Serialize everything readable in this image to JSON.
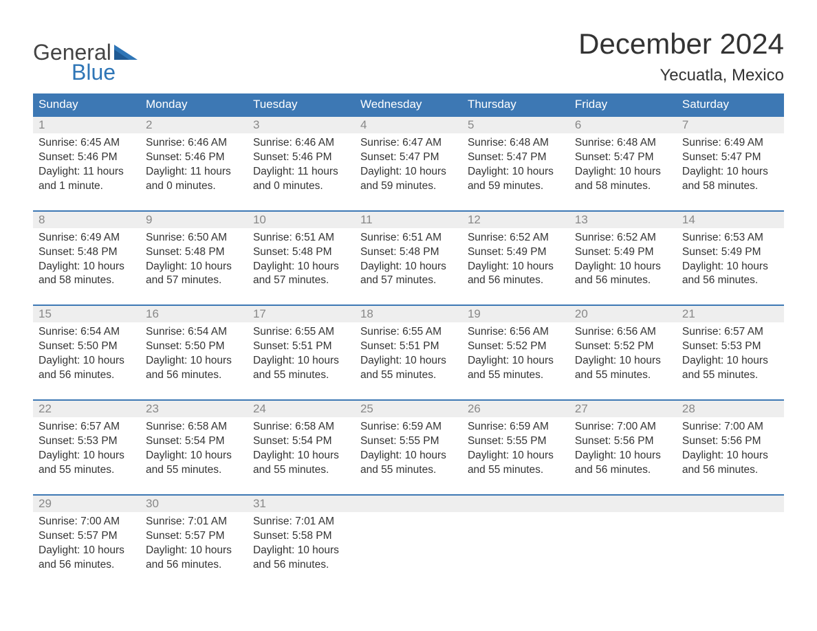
{
  "logo": {
    "text1": "General",
    "text2": "Blue",
    "flag_color": "#2e75b6"
  },
  "title": "December 2024",
  "location": "Yecuatla, Mexico",
  "colors": {
    "header_bg": "#3d78b4",
    "header_text": "#ffffff",
    "daynum_bg": "#eeeeee",
    "daynum_text": "#888888",
    "body_text": "#333333",
    "rule": "#3d78b4",
    "logo_gray": "#444444",
    "logo_blue": "#2e75b6",
    "page_bg": "#ffffff"
  },
  "fonts": {
    "title_size": 42,
    "location_size": 24,
    "header_size": 17,
    "daynum_size": 17,
    "body_size": 15.5,
    "logo_size": 32
  },
  "days_of_week": [
    "Sunday",
    "Monday",
    "Tuesday",
    "Wednesday",
    "Thursday",
    "Friday",
    "Saturday"
  ],
  "weeks": [
    [
      {
        "n": "1",
        "sunrise": "6:45 AM",
        "sunset": "5:46 PM",
        "dl": "11 hours and 1 minute."
      },
      {
        "n": "2",
        "sunrise": "6:46 AM",
        "sunset": "5:46 PM",
        "dl": "11 hours and 0 minutes."
      },
      {
        "n": "3",
        "sunrise": "6:46 AM",
        "sunset": "5:46 PM",
        "dl": "11 hours and 0 minutes."
      },
      {
        "n": "4",
        "sunrise": "6:47 AM",
        "sunset": "5:47 PM",
        "dl": "10 hours and 59 minutes."
      },
      {
        "n": "5",
        "sunrise": "6:48 AM",
        "sunset": "5:47 PM",
        "dl": "10 hours and 59 minutes."
      },
      {
        "n": "6",
        "sunrise": "6:48 AM",
        "sunset": "5:47 PM",
        "dl": "10 hours and 58 minutes."
      },
      {
        "n": "7",
        "sunrise": "6:49 AM",
        "sunset": "5:47 PM",
        "dl": "10 hours and 58 minutes."
      }
    ],
    [
      {
        "n": "8",
        "sunrise": "6:49 AM",
        "sunset": "5:48 PM",
        "dl": "10 hours and 58 minutes."
      },
      {
        "n": "9",
        "sunrise": "6:50 AM",
        "sunset": "5:48 PM",
        "dl": "10 hours and 57 minutes."
      },
      {
        "n": "10",
        "sunrise": "6:51 AM",
        "sunset": "5:48 PM",
        "dl": "10 hours and 57 minutes."
      },
      {
        "n": "11",
        "sunrise": "6:51 AM",
        "sunset": "5:48 PM",
        "dl": "10 hours and 57 minutes."
      },
      {
        "n": "12",
        "sunrise": "6:52 AM",
        "sunset": "5:49 PM",
        "dl": "10 hours and 56 minutes."
      },
      {
        "n": "13",
        "sunrise": "6:52 AM",
        "sunset": "5:49 PM",
        "dl": "10 hours and 56 minutes."
      },
      {
        "n": "14",
        "sunrise": "6:53 AM",
        "sunset": "5:49 PM",
        "dl": "10 hours and 56 minutes."
      }
    ],
    [
      {
        "n": "15",
        "sunrise": "6:54 AM",
        "sunset": "5:50 PM",
        "dl": "10 hours and 56 minutes."
      },
      {
        "n": "16",
        "sunrise": "6:54 AM",
        "sunset": "5:50 PM",
        "dl": "10 hours and 56 minutes."
      },
      {
        "n": "17",
        "sunrise": "6:55 AM",
        "sunset": "5:51 PM",
        "dl": "10 hours and 55 minutes."
      },
      {
        "n": "18",
        "sunrise": "6:55 AM",
        "sunset": "5:51 PM",
        "dl": "10 hours and 55 minutes."
      },
      {
        "n": "19",
        "sunrise": "6:56 AM",
        "sunset": "5:52 PM",
        "dl": "10 hours and 55 minutes."
      },
      {
        "n": "20",
        "sunrise": "6:56 AM",
        "sunset": "5:52 PM",
        "dl": "10 hours and 55 minutes."
      },
      {
        "n": "21",
        "sunrise": "6:57 AM",
        "sunset": "5:53 PM",
        "dl": "10 hours and 55 minutes."
      }
    ],
    [
      {
        "n": "22",
        "sunrise": "6:57 AM",
        "sunset": "5:53 PM",
        "dl": "10 hours and 55 minutes."
      },
      {
        "n": "23",
        "sunrise": "6:58 AM",
        "sunset": "5:54 PM",
        "dl": "10 hours and 55 minutes."
      },
      {
        "n": "24",
        "sunrise": "6:58 AM",
        "sunset": "5:54 PM",
        "dl": "10 hours and 55 minutes."
      },
      {
        "n": "25",
        "sunrise": "6:59 AM",
        "sunset": "5:55 PM",
        "dl": "10 hours and 55 minutes."
      },
      {
        "n": "26",
        "sunrise": "6:59 AM",
        "sunset": "5:55 PM",
        "dl": "10 hours and 55 minutes."
      },
      {
        "n": "27",
        "sunrise": "7:00 AM",
        "sunset": "5:56 PM",
        "dl": "10 hours and 56 minutes."
      },
      {
        "n": "28",
        "sunrise": "7:00 AM",
        "sunset": "5:56 PM",
        "dl": "10 hours and 56 minutes."
      }
    ],
    [
      {
        "n": "29",
        "sunrise": "7:00 AM",
        "sunset": "5:57 PM",
        "dl": "10 hours and 56 minutes."
      },
      {
        "n": "30",
        "sunrise": "7:01 AM",
        "sunset": "5:57 PM",
        "dl": "10 hours and 56 minutes."
      },
      {
        "n": "31",
        "sunrise": "7:01 AM",
        "sunset": "5:58 PM",
        "dl": "10 hours and 56 minutes."
      },
      null,
      null,
      null,
      null
    ]
  ],
  "labels": {
    "sunrise": "Sunrise:",
    "sunset": "Sunset:",
    "daylight": "Daylight:"
  }
}
